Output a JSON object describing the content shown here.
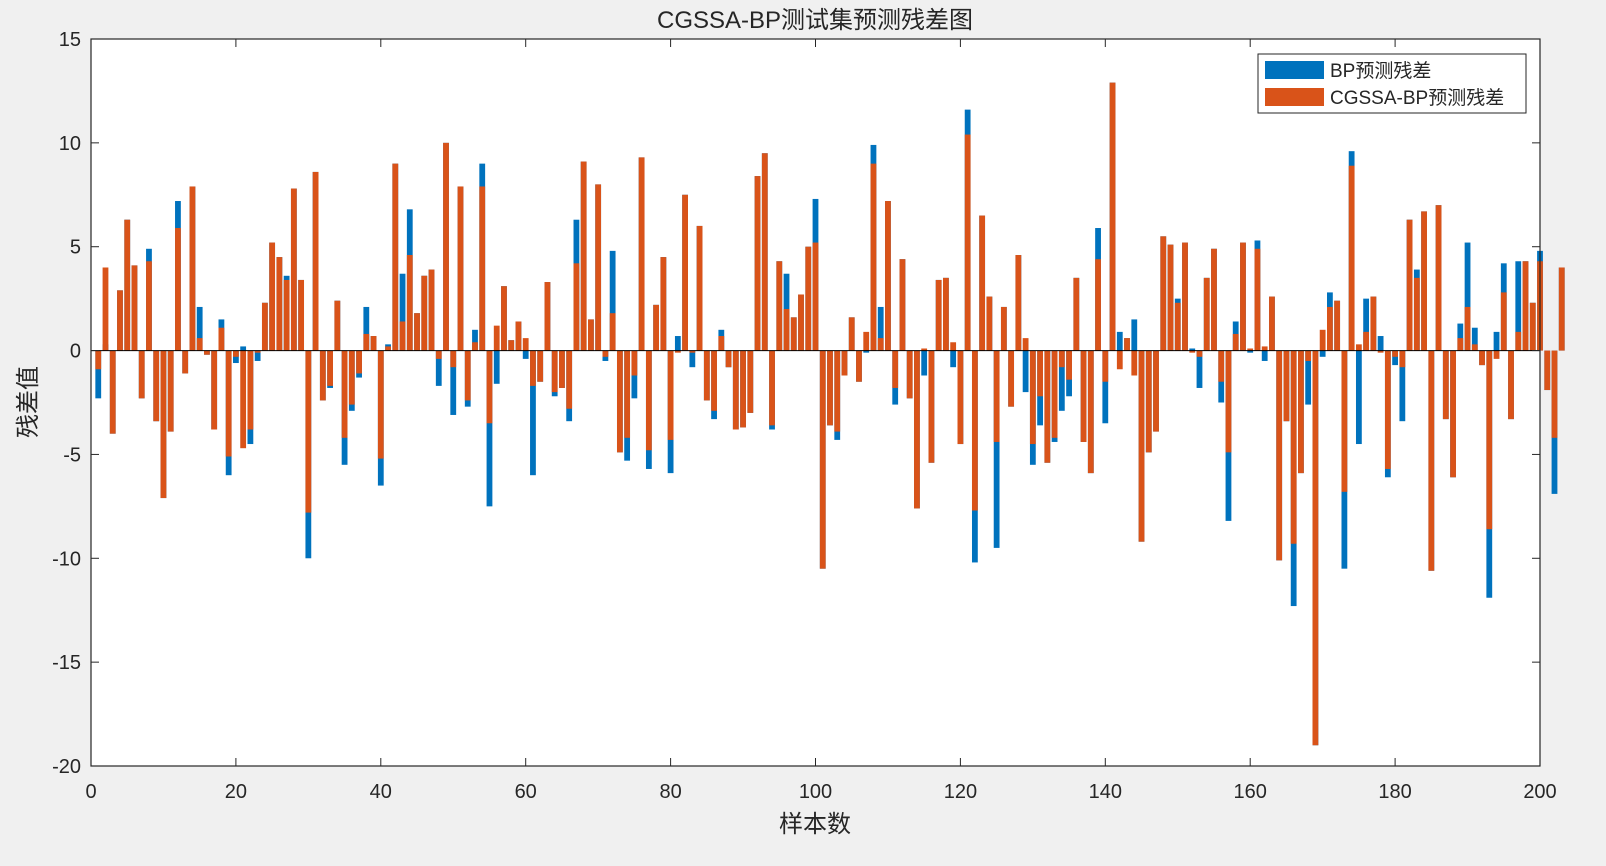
{
  "chart_data": {
    "type": "bar",
    "title": "CGSSA-BP测试集预测残差图",
    "xlabel": "样本数",
    "ylabel": "残差值",
    "xlim": [
      0,
      200
    ],
    "ylim": [
      -20,
      15
    ],
    "xticks": [
      0,
      20,
      40,
      60,
      80,
      100,
      120,
      140,
      160,
      180,
      200
    ],
    "yticks": [
      -20,
      -15,
      -10,
      -5,
      0,
      5,
      10,
      15
    ],
    "legend_position": "top-right",
    "grid": false,
    "series": [
      {
        "name": "BP预测残差",
        "color": "#0072BD",
        "values": [
          -2.3,
          0.3,
          -4.0,
          2.9,
          6.3,
          4.1,
          -2.3,
          4.9,
          -3.4,
          -7.1,
          -3.9,
          7.2,
          -1.1,
          7.9,
          2.1,
          -0.2,
          -3.8,
          1.5,
          -6.0,
          -0.6,
          0.2,
          -4.5,
          -0.5,
          2.3,
          5.2,
          4.5,
          3.6,
          7.8,
          3.4,
          -10.0,
          8.6,
          -2.4,
          -1.8,
          2.4,
          -5.5,
          -2.9,
          -1.3,
          2.1,
          0.7,
          -6.5,
          0.3,
          9.0,
          3.7,
          6.8,
          1.8,
          3.6,
          3.9,
          -1.7,
          10.0,
          -3.1,
          7.9,
          -2.7,
          1.0,
          9.0,
          -7.5,
          -1.6,
          3.1,
          0.5,
          1.4,
          -0.4,
          -6.0,
          -1.5,
          3.3,
          -2.2,
          -1.8,
          -3.4,
          6.3,
          9.1,
          1.5,
          8.0,
          -0.5,
          4.8,
          -4.9,
          -5.3,
          -2.3,
          9.3,
          -5.7,
          2.2,
          4.5,
          -5.9,
          0.7,
          7.5,
          -0.8,
          6.0,
          -2.4,
          -3.3,
          1.0,
          -0.8,
          -3.8,
          -3.7,
          -3.0,
          8.4,
          9.5,
          -3.8,
          4.3,
          3.7,
          1.6,
          2.7,
          5.0,
          7.3,
          -10.5,
          -3.6,
          -4.3,
          -1.2,
          1.6,
          -1.5,
          -0.1,
          9.9,
          2.1,
          7.2,
          -2.6,
          4.4,
          -2.3,
          -7.6,
          -1.2,
          -5.4,
          3.4,
          3.5,
          -0.8,
          -4.5,
          11.6,
          -10.2,
          6.5,
          2.6,
          -9.5,
          2.1,
          -2.7,
          4.6,
          -2.0,
          -5.5,
          -3.6,
          -5.4,
          -4.4,
          -2.9,
          -2.2,
          3.5,
          -4.4,
          -5.9,
          5.9,
          -3.5,
          12.9,
          0.9,
          0.6,
          1.5,
          -9.2,
          -4.9,
          -3.9,
          5.5,
          5.1,
          2.5,
          5.2,
          0.1,
          -1.8,
          3.5,
          4.9,
          -2.5,
          -8.2,
          1.4,
          5.2,
          -0.1,
          5.3,
          -0.5,
          2.6,
          -10.1,
          -3.4,
          -12.3,
          -5.9,
          -2.6,
          -19.0,
          -0.3,
          2.8,
          2.4,
          -10.5,
          9.6,
          -4.5,
          2.5,
          2.6,
          0.7,
          -6.1,
          -0.7,
          -3.4,
          6.3,
          3.9,
          6.7,
          -10.6,
          7.0,
          -3.3,
          -6.1,
          1.3,
          5.2,
          1.1,
          -0.7,
          -11.9,
          0.9,
          4.2,
          -3.3,
          4.3,
          4.3,
          2.3,
          4.8,
          -1.9,
          -6.9,
          4.0
        ],
        "total": 200
      },
      {
        "name": "CGSSA-BP预测残差",
        "color": "#D95319",
        "values": [
          -0.9,
          4.0,
          -4.0,
          2.9,
          6.3,
          4.1,
          -2.3,
          4.3,
          -3.4,
          -7.1,
          -3.9,
          5.9,
          -1.1,
          7.9,
          0.6,
          -0.2,
          -3.8,
          1.1,
          -5.1,
          -0.3,
          -4.7,
          -3.8,
          -0.1,
          2.3,
          5.2,
          4.5,
          3.4,
          7.8,
          3.4,
          -7.8,
          8.6,
          -2.4,
          -1.7,
          2.4,
          -4.2,
          -2.6,
          -1.1,
          0.8,
          0.7,
          -5.2,
          0.2,
          9.0,
          1.4,
          4.6,
          1.8,
          3.6,
          3.9,
          -0.4,
          10.0,
          -0.8,
          7.9,
          -2.4,
          0.4,
          7.9,
          -3.5,
          1.2,
          3.1,
          0.5,
          1.4,
          0.6,
          -1.7,
          -1.5,
          3.3,
          -2.0,
          -1.8,
          -2.8,
          4.2,
          9.1,
          1.5,
          8.0,
          -0.3,
          1.8,
          -4.9,
          -4.2,
          -1.2,
          9.3,
          -4.8,
          2.2,
          4.5,
          -4.3,
          -0.1,
          7.5,
          -0.1,
          6.0,
          -2.4,
          -2.9,
          0.7,
          -0.8,
          -3.8,
          -3.7,
          -3.0,
          8.4,
          9.5,
          -3.6,
          4.3,
          2.0,
          1.6,
          2.7,
          5.0,
          5.2,
          -10.5,
          -3.6,
          -3.9,
          -1.2,
          1.6,
          -1.5,
          0.9,
          9.0,
          0.6,
          7.2,
          -1.8,
          4.4,
          -2.3,
          -7.6,
          0.1,
          -5.4,
          3.4,
          3.5,
          0.4,
          -4.5,
          10.4,
          -7.7,
          6.5,
          2.6,
          -4.4,
          2.1,
          -2.7,
          4.6,
          0.6,
          -4.5,
          -2.2,
          -5.4,
          -4.2,
          -0.8,
          -1.4,
          3.5,
          -4.4,
          -5.9,
          4.4,
          -1.5,
          12.9,
          -0.9,
          0.6,
          -1.2,
          -9.2,
          -4.9,
          -3.9,
          5.5,
          5.1,
          2.3,
          5.2,
          -0.1,
          -0.3,
          3.5,
          4.9,
          -1.5,
          -4.9,
          0.8,
          5.2,
          0.1,
          4.9,
          0.2,
          2.6,
          -10.1,
          -3.4,
          -9.3,
          -5.9,
          -0.5,
          -19.0,
          1.0,
          2.1,
          2.4,
          -6.8,
          8.9,
          0.3,
          0.9,
          2.6,
          -0.1,
          -5.7,
          -0.3,
          -0.8,
          6.3,
          3.5,
          6.7,
          -10.6,
          7.0,
          -3.3,
          -6.1,
          0.6,
          2.1,
          0.3,
          -0.7,
          -8.6,
          -0.4,
          2.8,
          -3.3,
          0.9,
          4.3,
          2.3,
          4.3,
          -1.9,
          -4.2,
          4.0
        ],
        "total": 200
      }
    ]
  }
}
